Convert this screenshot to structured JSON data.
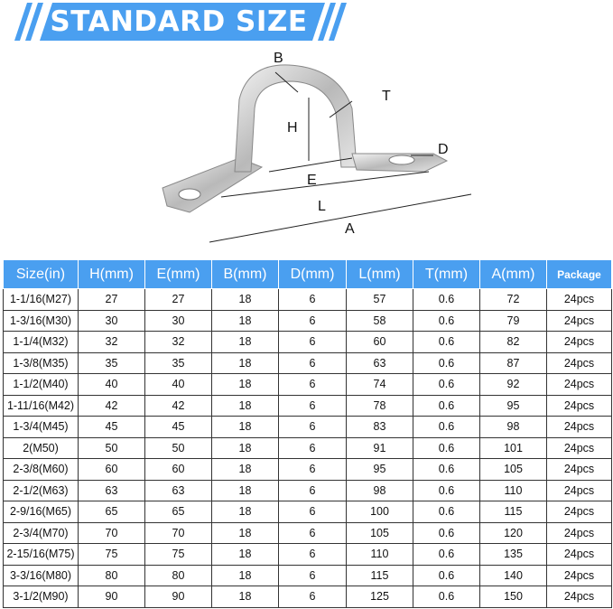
{
  "banner": {
    "title": "STANDARD SIZE",
    "color": "#4a9ff0"
  },
  "diagram": {
    "labels": {
      "B": "B",
      "T": "T",
      "H": "H",
      "D": "D",
      "E": "E",
      "L": "L",
      "A": "A"
    }
  },
  "table": {
    "headers": [
      "Size(in)",
      "H(mm)",
      "E(mm)",
      "B(mm)",
      "D(mm)",
      "L(mm)",
      "T(mm)",
      "A(mm)",
      "Package"
    ],
    "rows": [
      [
        "1-1/16(M27)",
        "27",
        "27",
        "18",
        "6",
        "57",
        "0.6",
        "72",
        "24pcs"
      ],
      [
        "1-3/16(M30)",
        "30",
        "30",
        "18",
        "6",
        "58",
        "0.6",
        "79",
        "24pcs"
      ],
      [
        "1-1/4(M32)",
        "32",
        "32",
        "18",
        "6",
        "60",
        "0.6",
        "82",
        "24pcs"
      ],
      [
        "1-3/8(M35)",
        "35",
        "35",
        "18",
        "6",
        "63",
        "0.6",
        "87",
        "24pcs"
      ],
      [
        "1-1/2(M40)",
        "40",
        "40",
        "18",
        "6",
        "74",
        "0.6",
        "92",
        "24pcs"
      ],
      [
        "1-11/16(M42)",
        "42",
        "42",
        "18",
        "6",
        "78",
        "0.6",
        "95",
        "24pcs"
      ],
      [
        "1-3/4(M45)",
        "45",
        "45",
        "18",
        "6",
        "83",
        "0.6",
        "98",
        "24pcs"
      ],
      [
        "2(M50)",
        "50",
        "50",
        "18",
        "6",
        "91",
        "0.6",
        "101",
        "24pcs"
      ],
      [
        "2-3/8(M60)",
        "60",
        "60",
        "18",
        "6",
        "95",
        "0.6",
        "105",
        "24pcs"
      ],
      [
        "2-1/2(M63)",
        "63",
        "63",
        "18",
        "6",
        "98",
        "0.6",
        "110",
        "24pcs"
      ],
      [
        "2-9/16(M65)",
        "65",
        "65",
        "18",
        "6",
        "100",
        "0.6",
        "115",
        "24pcs"
      ],
      [
        "2-3/4(M70)",
        "70",
        "70",
        "18",
        "6",
        "105",
        "0.6",
        "120",
        "24pcs"
      ],
      [
        "2-15/16(M75)",
        "75",
        "75",
        "18",
        "6",
        "110",
        "0.6",
        "135",
        "24pcs"
      ],
      [
        "3-3/16(M80)",
        "80",
        "80",
        "18",
        "6",
        "115",
        "0.6",
        "140",
        "24pcs"
      ],
      [
        "3-1/2(M90)",
        "90",
        "90",
        "18",
        "6",
        "125",
        "0.6",
        "150",
        "24pcs"
      ]
    ]
  }
}
